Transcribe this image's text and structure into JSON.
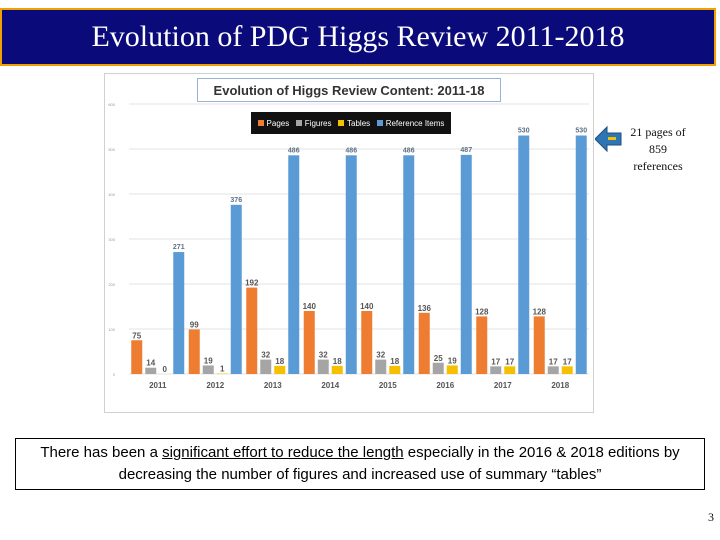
{
  "slide": {
    "title": "Evolution of PDG Higgs Review 2011-2018",
    "callout_lines": [
      "21 pages of",
      "859",
      "references"
    ],
    "note_before": "There has been a ",
    "note_underlined": "significant effort to reduce the length",
    "note_after": " especially in the 2016 & 2018 editions by decreasing the number of figures and increased use of summary “tables”",
    "page_number": "3"
  },
  "colors": {
    "title_bg": "#0a0a7a",
    "title_border": "#f0a000",
    "pages": "#ee7d31",
    "figures": "#a5a5a5",
    "tables": "#f5c000",
    "references": "#5b9bd5",
    "arrow": "#2e75b6"
  },
  "chart_data": {
    "type": "bar",
    "title": "Evolution of Higgs Review Content: 2011-18",
    "categories": [
      "2011",
      "2012",
      "2013",
      "2014",
      "2015",
      "2016",
      "2017",
      "2018"
    ],
    "series": [
      {
        "name": "Pages",
        "values": [
          75,
          99,
          192,
          140,
          140,
          136,
          128,
          128
        ]
      },
      {
        "name": "Figures",
        "values": [
          14,
          19,
          32,
          32,
          32,
          25,
          17,
          17
        ]
      },
      {
        "name": "Tables",
        "values": [
          0,
          1,
          18,
          18,
          18,
          19,
          17,
          17
        ]
      },
      {
        "name": "Reference Items",
        "values": [
          271,
          376,
          486,
          486,
          486,
          487,
          530,
          530
        ]
      }
    ],
    "ylim": [
      0,
      600
    ],
    "yticks": [
      "0",
      "100",
      "200",
      "300",
      "400",
      "500",
      "600"
    ],
    "grid": true,
    "legend": "top-center"
  }
}
